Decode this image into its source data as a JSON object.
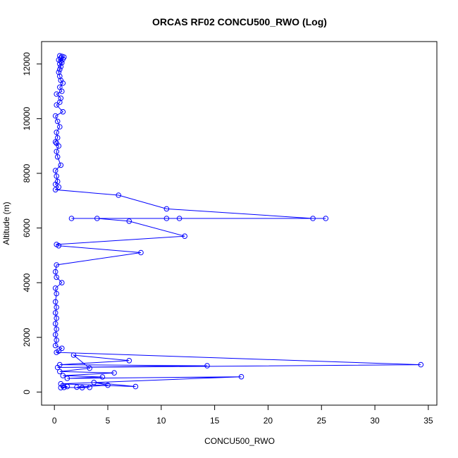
{
  "chart_data": {
    "type": "line",
    "title": "ORCAS RF02 CONCU500_RWO (Log)",
    "xlabel": "CONCU500_RWO",
    "ylabel": "Altitude (m)",
    "xlim": [
      -1.2,
      35.8
    ],
    "ylim": [
      -480,
      12820
    ],
    "x_ticks": [
      0,
      5,
      10,
      15,
      20,
      25,
      30,
      35
    ],
    "y_ticks": [
      0,
      2000,
      4000,
      6000,
      8000,
      10000,
      12000
    ],
    "line_color": "#0000ff",
    "marker": "open-circle",
    "grid": false,
    "series": [
      {
        "points": [
          [
            0.5,
            12300
          ],
          [
            0.7,
            12280
          ],
          [
            0.9,
            12250
          ],
          [
            0.6,
            12220
          ],
          [
            0.8,
            12180
          ],
          [
            0.4,
            12150
          ],
          [
            0.6,
            12100
          ],
          [
            0.7,
            12050
          ],
          [
            0.5,
            12000
          ],
          [
            0.6,
            11900
          ],
          [
            0.5,
            11800
          ],
          [
            0.4,
            11700
          ],
          [
            0.5,
            11550
          ],
          [
            0.6,
            11400
          ],
          [
            0.8,
            11300
          ],
          [
            0.5,
            11150
          ],
          [
            0.7,
            11000
          ],
          [
            0.2,
            10900
          ],
          [
            0.6,
            10750
          ],
          [
            0.5,
            10600
          ],
          [
            0.2,
            10500
          ],
          [
            0.8,
            10250
          ],
          [
            0.1,
            10100
          ],
          [
            0.3,
            9900
          ],
          [
            0.5,
            9700
          ],
          [
            0.2,
            9500
          ],
          [
            0.3,
            9300
          ],
          [
            0.1,
            9150
          ],
          [
            0.2,
            9100
          ],
          [
            0.4,
            9000
          ],
          [
            0.2,
            8800
          ],
          [
            0.3,
            8600
          ],
          [
            0.6,
            8300
          ],
          [
            0.1,
            8100
          ],
          [
            0.2,
            7900
          ],
          [
            0.3,
            7700
          ],
          [
            0.1,
            7600
          ],
          [
            0.4,
            7500
          ],
          [
            0.1,
            7400
          ],
          [
            6.0,
            7200
          ],
          [
            10.5,
            6700
          ],
          [
            24.2,
            6350
          ],
          [
            1.6,
            6350
          ],
          [
            25.4,
            6350
          ],
          [
            11.7,
            6350
          ],
          [
            10.5,
            6350
          ],
          [
            4.0,
            6350
          ],
          [
            7.0,
            6250
          ],
          [
            12.2,
            5700
          ],
          [
            0.2,
            5400
          ],
          [
            0.4,
            5350
          ],
          [
            8.1,
            5100
          ],
          [
            0.2,
            4650
          ],
          [
            0.1,
            4400
          ],
          [
            0.2,
            4200
          ],
          [
            0.7,
            4000
          ],
          [
            0.1,
            3800
          ],
          [
            0.2,
            3600
          ],
          [
            0.1,
            3300
          ],
          [
            0.2,
            3100
          ],
          [
            0.1,
            2900
          ],
          [
            0.2,
            2700
          ],
          [
            0.1,
            2500
          ],
          [
            0.2,
            2300
          ],
          [
            0.1,
            2100
          ],
          [
            0.2,
            1900
          ],
          [
            0.1,
            1700
          ],
          [
            0.7,
            1600
          ],
          [
            0.4,
            1500
          ],
          [
            0.2,
            1450
          ],
          [
            34.3,
            1000
          ],
          [
            0.3,
            900
          ],
          [
            14.3,
            960
          ],
          [
            0.5,
            1000
          ],
          [
            7.0,
            1150
          ],
          [
            1.8,
            1350
          ],
          [
            3.3,
            870
          ],
          [
            0.5,
            750
          ],
          [
            5.6,
            700
          ],
          [
            0.8,
            600
          ],
          [
            4.5,
            550
          ],
          [
            1.2,
            500
          ],
          [
            17.5,
            560
          ],
          [
            0.6,
            300
          ],
          [
            7.6,
            200
          ],
          [
            3.7,
            350
          ],
          [
            5.0,
            250
          ],
          [
            2.1,
            180
          ],
          [
            3.3,
            170
          ],
          [
            2.6,
            160
          ],
          [
            0.9,
            170
          ],
          [
            0.6,
            160
          ],
          [
            1.2,
            200
          ],
          [
            0.8,
            230
          ]
        ]
      }
    ]
  }
}
